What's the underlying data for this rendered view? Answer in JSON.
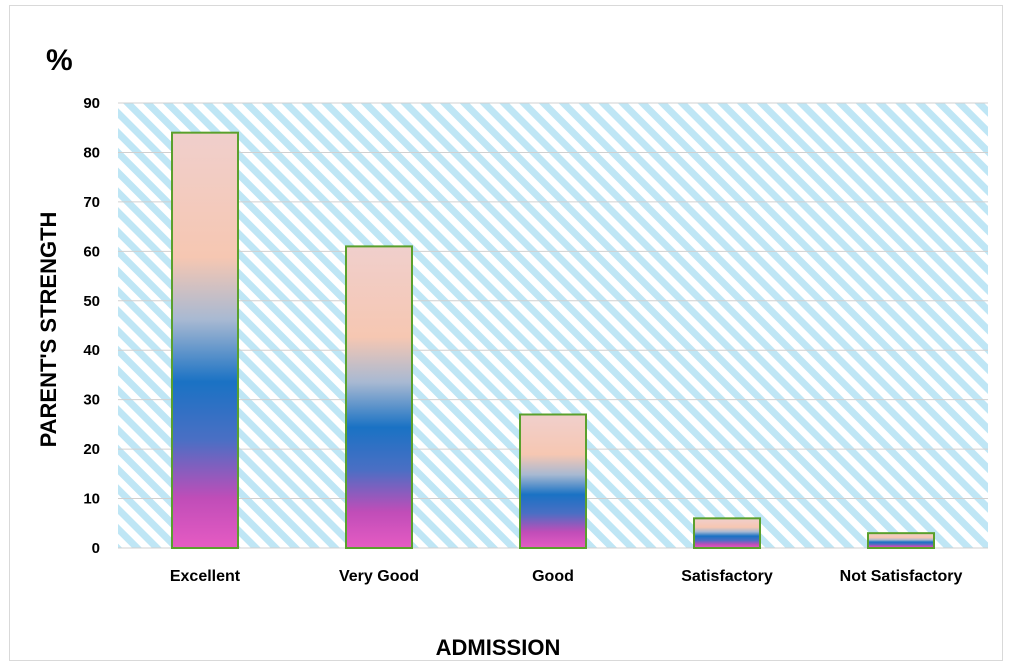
{
  "chart_data": {
    "type": "bar",
    "unit_label": "%",
    "xlabel": "ADMISSION",
    "ylabel": "PARENT'S STRENGTH",
    "ylim": [
      0,
      90
    ],
    "yticks": [
      0,
      10,
      20,
      30,
      40,
      50,
      60,
      70,
      80,
      90
    ],
    "categories": [
      "Excellent",
      "Very Good",
      "Good",
      "Satisfactory",
      "Not Satisfactory"
    ],
    "values": [
      84,
      61,
      27,
      6,
      3
    ],
    "grid": true,
    "legend": "none",
    "colors": {
      "plot_hatch": "#bfe6f5",
      "gridline": "#d0d0d0",
      "bar_border": "#5aa02c",
      "gradient": [
        "#e65bc3",
        "#1a72c4",
        "#f6c7b2",
        "#f0cfcc"
      ]
    }
  }
}
